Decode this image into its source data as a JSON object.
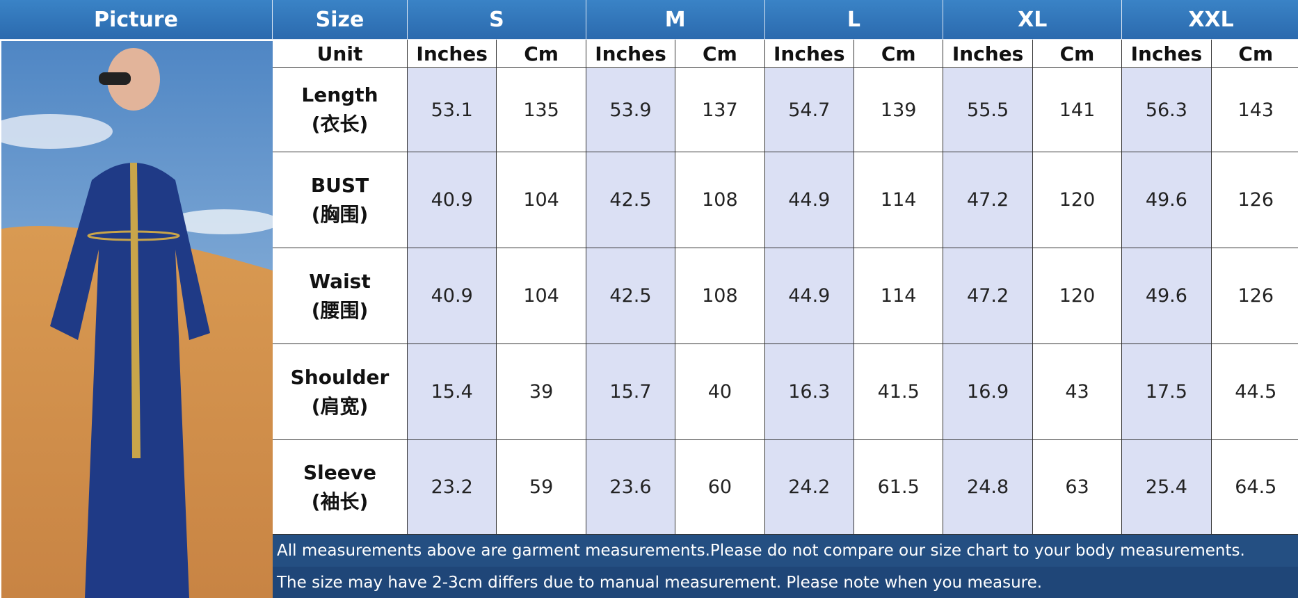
{
  "header": {
    "picture": "Picture",
    "size": "Size",
    "sizes": [
      "S",
      "M",
      "L",
      "XL",
      "XXL"
    ]
  },
  "unit_row": {
    "label": "Unit",
    "units": [
      "Inches",
      "Cm",
      "Inches",
      "Cm",
      "Inches",
      "Cm",
      "Inches",
      "Cm",
      "Inches",
      "Cm"
    ]
  },
  "rows": [
    {
      "name": "Length",
      "name_cn": "(衣长)",
      "values": [
        53.1,
        135,
        53.9,
        137,
        54.7,
        139,
        55.5,
        141,
        56.3,
        143
      ]
    },
    {
      "name": "BUST",
      "name_cn": "(胸围)",
      "values": [
        40.9,
        104,
        42.5,
        108,
        44.9,
        114,
        47.2,
        120,
        49.6,
        126
      ]
    },
    {
      "name": "Waist",
      "name_cn": "(腰围)",
      "values": [
        40.9,
        104,
        42.5,
        108,
        44.9,
        114,
        47.2,
        120,
        49.6,
        126
      ]
    },
    {
      "name": "Shoulder",
      "name_cn": "(肩宽)",
      "values": [
        15.4,
        39,
        15.7,
        40,
        16.3,
        41.5,
        16.9,
        43,
        17.5,
        44.5
      ]
    },
    {
      "name": "Sleeve",
      "name_cn": "(袖长)",
      "values": [
        23.2,
        59,
        23.6,
        60,
        24.2,
        61.5,
        24.8,
        63,
        25.4,
        64.5
      ]
    }
  ],
  "notes": [
    "All measurements above are garment measurements.Please do not compare our size chart to your body measurements.",
    "The size may have 2-3cm differs due to manual measurement. Please note when you measure."
  ]
}
